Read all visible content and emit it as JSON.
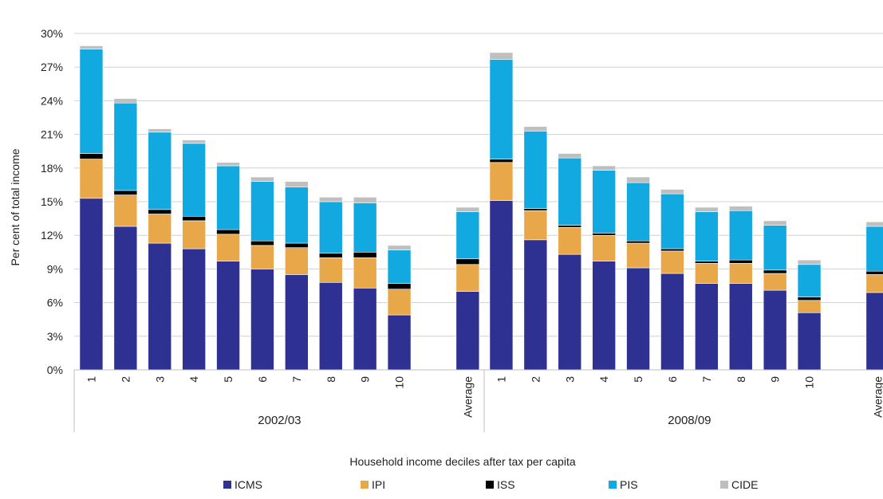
{
  "chart_data": {
    "type": "bar",
    "stacked": true,
    "title": "",
    "xlabel": "Household income deciles after tax per capita",
    "ylabel": "Per cent of total income",
    "ylim": [
      0,
      30
    ],
    "yticks": [
      "0%",
      "3%",
      "6%",
      "9%",
      "12%",
      "15%",
      "18%",
      "21%",
      "24%",
      "27%",
      "30%"
    ],
    "grid": true,
    "legend_position": "bottom",
    "groups": [
      {
        "label": "2002/03",
        "categories": [
          "1",
          "2",
          "3",
          "4",
          "5",
          "6",
          "7",
          "8",
          "9",
          "10"
        ],
        "series": [
          {
            "name": "ICMS",
            "values": [
              15.3,
              12.8,
              11.3,
              10.8,
              9.7,
              9.0,
              8.5,
              7.8,
              7.3,
              4.9
            ]
          },
          {
            "name": "IPI",
            "values": [
              3.5,
              2.8,
              2.6,
              2.5,
              2.4,
              2.1,
              2.4,
              2.2,
              2.7,
              2.3
            ]
          },
          {
            "name": "ISS",
            "values": [
              0.5,
              0.4,
              0.4,
              0.4,
              0.4,
              0.4,
              0.4,
              0.4,
              0.5,
              0.5
            ]
          },
          {
            "name": "PIS",
            "values": [
              9.3,
              7.8,
              6.9,
              6.5,
              5.7,
              5.3,
              5.0,
              4.6,
              4.4,
              3.0
            ]
          },
          {
            "name": "CIDE",
            "values": [
              0.3,
              0.4,
              0.3,
              0.3,
              0.3,
              0.4,
              0.5,
              0.4,
              0.5,
              0.4
            ]
          }
        ],
        "average": {
          "label": "Average",
          "values": [
            7.0,
            2.4,
            0.5,
            4.2,
            0.4
          ]
        }
      },
      {
        "label": "2008/09",
        "categories": [
          "1",
          "2",
          "3",
          "4",
          "5",
          "6",
          "7",
          "8",
          "9",
          "10"
        ],
        "series": [
          {
            "name": "ICMS",
            "values": [
              15.1,
              11.6,
              10.3,
              9.7,
              9.1,
              8.6,
              7.7,
              7.7,
              7.1,
              5.1
            ]
          },
          {
            "name": "IPI",
            "values": [
              3.4,
              2.6,
              2.4,
              2.3,
              2.2,
              2.0,
              1.8,
              1.8,
              1.5,
              1.1
            ]
          },
          {
            "name": "ISS",
            "values": [
              0.3,
              0.2,
              0.2,
              0.2,
              0.2,
              0.2,
              0.2,
              0.3,
              0.3,
              0.3
            ]
          },
          {
            "name": "PIS",
            "values": [
              8.9,
              6.9,
              6.0,
              5.6,
              5.2,
              4.9,
              4.4,
              4.4,
              4.0,
              2.9
            ]
          },
          {
            "name": "CIDE",
            "values": [
              0.6,
              0.4,
              0.4,
              0.4,
              0.5,
              0.4,
              0.4,
              0.4,
              0.4,
              0.4
            ]
          }
        ],
        "average": {
          "label": "Average",
          "values": [
            6.9,
            1.6,
            0.3,
            4.0,
            0.4
          ]
        }
      }
    ],
    "colors": {
      "ICMS": "#2e3192",
      "IPI": "#e8a84a",
      "ISS": "#000000",
      "PIS": "#12a8e0",
      "CIDE": "#bfbfbf"
    }
  },
  "legend": [
    {
      "name": "ICMS",
      "color": "#2e3192"
    },
    {
      "name": "IPI",
      "color": "#e8a84a"
    },
    {
      "name": "ISS",
      "color": "#000000"
    },
    {
      "name": "PIS",
      "color": "#12a8e0"
    },
    {
      "name": "CIDE",
      "color": "#bfbfbf"
    }
  ]
}
